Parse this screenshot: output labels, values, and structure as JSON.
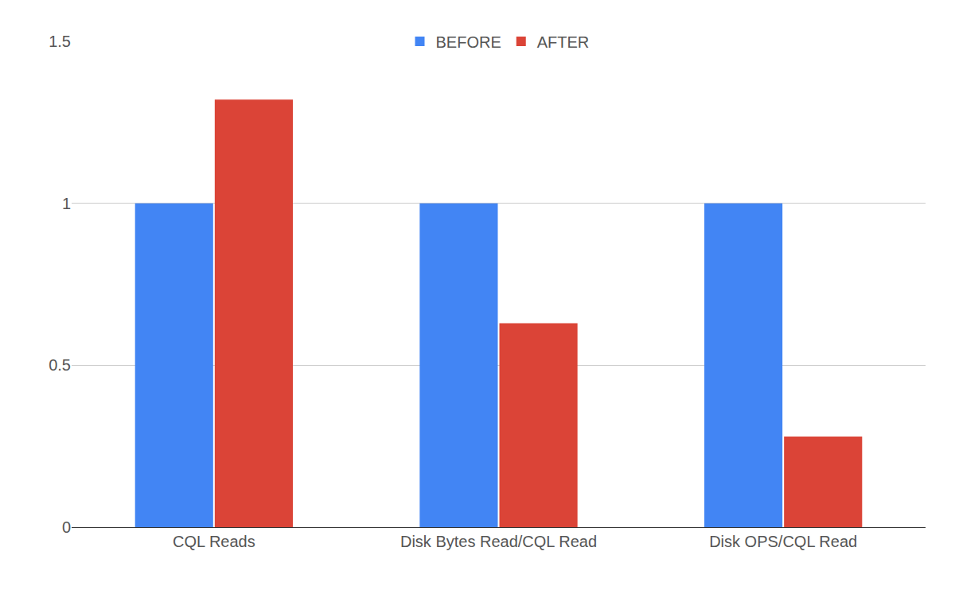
{
  "chart_data": {
    "type": "bar",
    "categories": [
      "CQL Reads",
      "Disk Bytes Read/CQL Read",
      "Disk OPS/CQL Read"
    ],
    "series": [
      {
        "name": "BEFORE",
        "color": "#4285f4",
        "values": [
          1,
          1,
          1
        ]
      },
      {
        "name": "AFTER",
        "color": "#db4437",
        "values": [
          1.32,
          0.63,
          0.28
        ]
      }
    ],
    "ylim": [
      0,
      1.5
    ],
    "yticks": [
      0,
      0.5,
      1,
      1.5
    ],
    "grid": true,
    "legend": "top"
  }
}
